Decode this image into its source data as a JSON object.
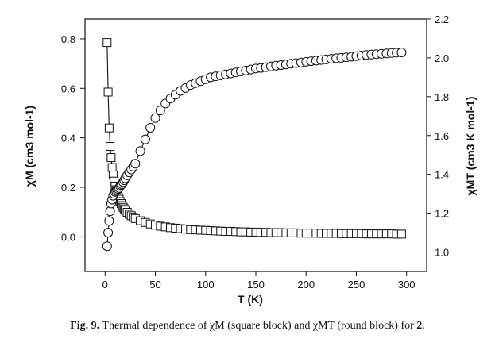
{
  "chart_data": {
    "type": "scatter",
    "xlabel": "T (K)",
    "ylabel_left": "χM (cm3 mol-1)",
    "ylabel_right": "χMT (cm3 K mol-1)",
    "xlim": [
      -20,
      320
    ],
    "ylim_left": [
      -0.14,
      0.88
    ],
    "ylim_right": [
      0.9,
      2.2
    ],
    "x_ticks": [
      0,
      50,
      100,
      150,
      200,
      250,
      300
    ],
    "x_tick_labels": [
      "0",
      "50",
      "100",
      "150",
      "200",
      "250",
      "300"
    ],
    "y_left_ticks": [
      0.0,
      0.2,
      0.4,
      0.6,
      0.8
    ],
    "y_left_tick_labels": [
      "0.0",
      "0.2",
      "0.4",
      "0.6",
      "0.8"
    ],
    "y_right_ticks": [
      1.0,
      1.2,
      1.4,
      1.6,
      1.8,
      2.0,
      2.2
    ],
    "y_right_tick_labels": [
      "1.0",
      "1.2",
      "1.4",
      "1.6",
      "1.8",
      "2.0",
      "2.2"
    ],
    "grid": false,
    "series": [
      {
        "marker": "square",
        "axis": "left",
        "x": [
          2,
          3,
          4,
          5,
          6,
          7,
          8,
          9,
          10,
          11,
          12,
          13,
          14,
          15,
          16,
          17,
          18,
          19,
          20,
          22,
          24,
          26,
          28,
          30,
          35,
          40,
          45,
          50,
          55,
          60,
          65,
          70,
          75,
          80,
          85,
          90,
          95,
          100,
          105,
          110,
          115,
          120,
          125,
          130,
          135,
          140,
          145,
          150,
          155,
          160,
          165,
          170,
          175,
          180,
          185,
          190,
          195,
          200,
          205,
          210,
          215,
          220,
          225,
          230,
          235,
          240,
          245,
          250,
          255,
          260,
          265,
          270,
          275,
          280,
          285,
          290,
          295
        ],
        "y": [
          0.785,
          0.585,
          0.44,
          0.365,
          0.32,
          0.28,
          0.25,
          0.225,
          0.205,
          0.19,
          0.175,
          0.162,
          0.152,
          0.142,
          0.134,
          0.126,
          0.119,
          0.113,
          0.108,
          0.099,
          0.091,
          0.085,
          0.079,
          0.074,
          0.065,
          0.058,
          0.052,
          0.047,
          0.043,
          0.04,
          0.037,
          0.035,
          0.033,
          0.031,
          0.029,
          0.028,
          0.027,
          0.026,
          0.025,
          0.024,
          0.023,
          0.022,
          0.022,
          0.021,
          0.02,
          0.02,
          0.019,
          0.019,
          0.018,
          0.018,
          0.017,
          0.017,
          0.017,
          0.016,
          0.016,
          0.016,
          0.015,
          0.015,
          0.015,
          0.015,
          0.014,
          0.014,
          0.014,
          0.014,
          0.013,
          0.013,
          0.013,
          0.013,
          0.013,
          0.012,
          0.012,
          0.012,
          0.012,
          0.012,
          0.012,
          0.011,
          0.011
        ]
      },
      {
        "marker": "circle",
        "axis": "right",
        "x": [
          2,
          3,
          4,
          5,
          6,
          7,
          8,
          9,
          10,
          11,
          12,
          13,
          14,
          15,
          16,
          17,
          18,
          19,
          20,
          22,
          24,
          26,
          28,
          30,
          35,
          40,
          45,
          50,
          55,
          60,
          65,
          70,
          75,
          80,
          85,
          90,
          95,
          100,
          105,
          110,
          115,
          120,
          125,
          130,
          135,
          140,
          145,
          150,
          155,
          160,
          165,
          170,
          175,
          180,
          185,
          190,
          195,
          200,
          205,
          210,
          215,
          220,
          225,
          230,
          235,
          240,
          245,
          250,
          255,
          260,
          265,
          270,
          275,
          280,
          285,
          290,
          295
        ],
        "y": [
          1.03,
          1.1,
          1.16,
          1.21,
          1.25,
          1.27,
          1.29,
          1.3,
          1.31,
          1.315,
          1.32,
          1.325,
          1.33,
          1.34,
          1.345,
          1.35,
          1.36,
          1.37,
          1.38,
          1.395,
          1.41,
          1.425,
          1.44,
          1.455,
          1.52,
          1.58,
          1.64,
          1.69,
          1.73,
          1.765,
          1.79,
          1.81,
          1.83,
          1.845,
          1.86,
          1.87,
          1.88,
          1.89,
          1.9,
          1.905,
          1.91,
          1.915,
          1.92,
          1.925,
          1.93,
          1.935,
          1.94,
          1.945,
          1.948,
          1.952,
          1.956,
          1.96,
          1.963,
          1.966,
          1.97,
          1.973,
          1.976,
          1.98,
          1.983,
          1.986,
          1.989,
          1.992,
          1.995,
          1.998,
          2.0,
          2.003,
          2.006,
          2.009,
          2.012,
          2.015,
          2.017,
          2.019,
          2.021,
          2.023,
          2.025,
          2.027,
          2.028
        ]
      }
    ]
  },
  "caption": {
    "figure_label": "Fig. 9.",
    "text": " Thermal dependence of χM (square block) and χMT (round block) for ",
    "compound": "2",
    "end": "."
  }
}
